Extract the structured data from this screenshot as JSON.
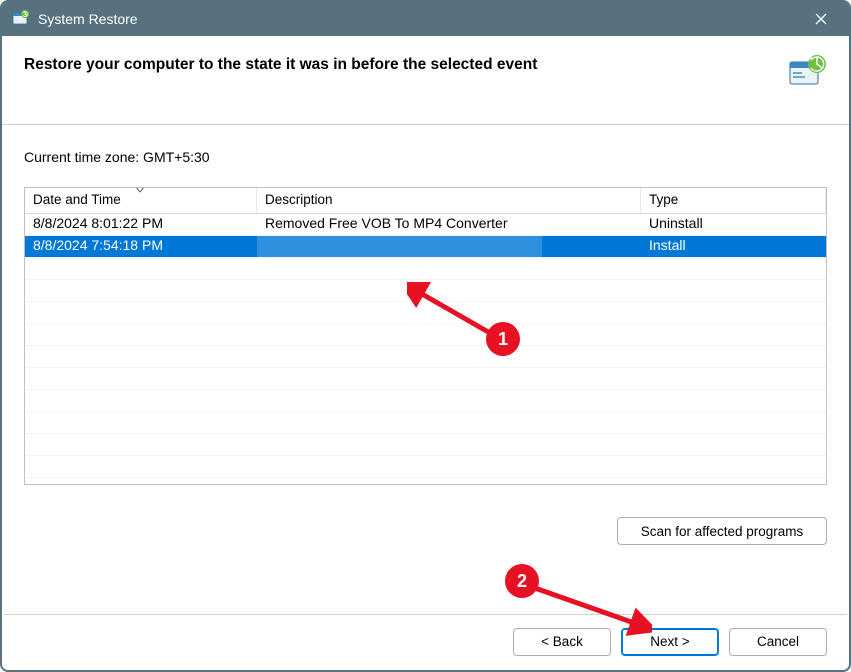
{
  "window": {
    "title": "System Restore"
  },
  "header": {
    "headline": "Restore your computer to the state it was in before the selected event"
  },
  "body": {
    "timezone_label": "Current time zone: GMT+5:30",
    "columns": {
      "datetime": "Date and Time",
      "description": "Description",
      "type": "Type"
    },
    "rows": [
      {
        "datetime": "8/8/2024 8:01:22 PM",
        "description": "Removed Free VOB To MP4 Converter",
        "type": "Uninstall",
        "selected": false
      },
      {
        "datetime": "8/8/2024 7:54:18 PM",
        "description": "",
        "type": "Install",
        "selected": true
      }
    ],
    "scan_button": "Scan for affected programs"
  },
  "footer": {
    "back": "< Back",
    "next": "Next >",
    "cancel": "Cancel"
  },
  "annotations": {
    "m1": "1",
    "m2": "2"
  },
  "colors": {
    "titlebar": "#58717e",
    "selection": "#0078d7",
    "annotation": "#e81123"
  }
}
